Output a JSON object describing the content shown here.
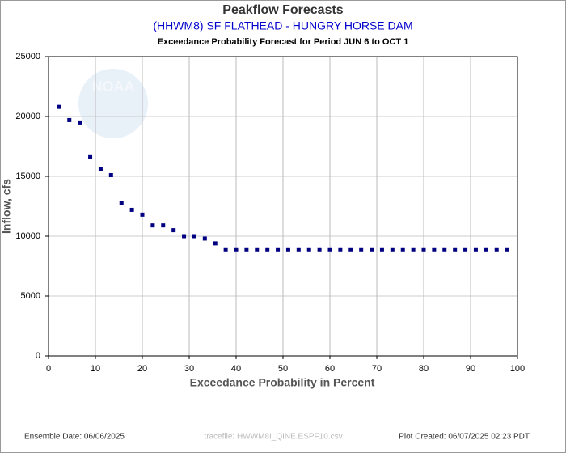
{
  "chart_data": {
    "type": "scatter",
    "title": "Peakflow Forecasts",
    "subtitle": "(HHWM8) SF FLATHEAD - HUNGRY HORSE DAM",
    "caption": "Exceedance Probability Forecast for Period JUN 6 to OCT 1",
    "x_label": "Exceedance Probability in Percent",
    "y_label": "Inflow, cfs",
    "watermark": "NOAA",
    "footer_left": "Ensemble Date: 06/06/2025",
    "footer_center": "tracefile: HWWM8I_QINE.ESPF10.csv",
    "footer_right": "Plot Created: 06/07/2025 02:23 PDT",
    "color": "#000080",
    "grid": true,
    "xlim": [
      0,
      100
    ],
    "xticks": [
      0,
      10,
      20,
      30,
      40,
      50,
      60,
      70,
      80,
      90,
      100
    ],
    "ylim": [
      0,
      25000
    ],
    "yticks": [
      0,
      5000,
      10000,
      15000,
      20000,
      25000
    ],
    "x": [
      2.22,
      4.44,
      6.67,
      8.89,
      11.11,
      13.33,
      15.56,
      17.78,
      20,
      22.22,
      24.44,
      26.67,
      28.89,
      31.11,
      33.33,
      35.56,
      37.78,
      40,
      42.22,
      44.44,
      46.67,
      48.89,
      51.11,
      53.33,
      55.56,
      57.78,
      60,
      62.22,
      64.44,
      66.67,
      68.89,
      71.11,
      73.33,
      75.56,
      77.78,
      80,
      82.22,
      84.44,
      86.67,
      88.89,
      91.11,
      93.33,
      95.56,
      97.78
    ],
    "values": [
      20800,
      19700,
      19500,
      16600,
      15600,
      15100,
      12800,
      12200,
      11800,
      10900,
      10900,
      10500,
      10000,
      10000,
      9800,
      9400,
      8900,
      8900,
      8900,
      8900,
      8900,
      8900,
      8900,
      8900,
      8900,
      8900,
      8900,
      8900,
      8900,
      8900,
      8900,
      8900,
      8900,
      8900,
      8900,
      8900,
      8900,
      8900,
      8900,
      8900,
      8900,
      8900,
      8900,
      8900
    ]
  }
}
